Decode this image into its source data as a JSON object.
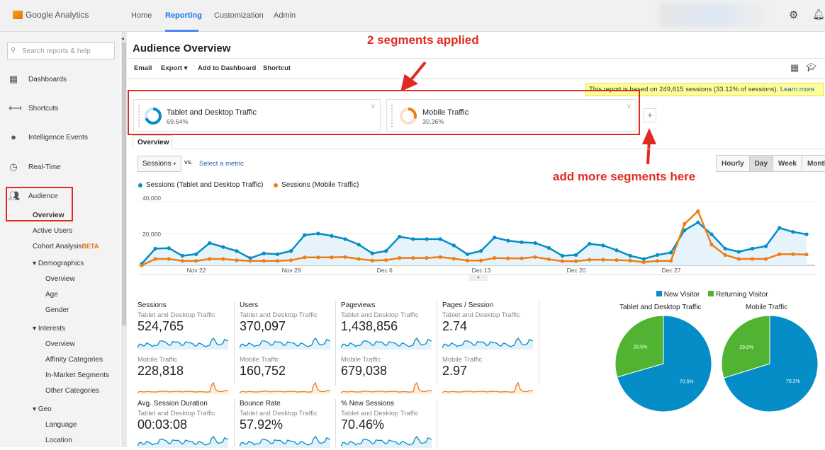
{
  "header": {
    "brand": "Google Analytics",
    "nav": [
      "Home",
      "Reporting",
      "Customization",
      "Admin"
    ],
    "active_nav": "Reporting",
    "icons": [
      "gear-icon",
      "bell-icon"
    ]
  },
  "sidebar": {
    "search_placeholder": "Search reports & help",
    "items": [
      {
        "label": "Dashboards",
        "icon": "grid-icon"
      },
      {
        "label": "Shortcuts",
        "icon": "shortcut-arrow-icon"
      },
      {
        "label": "Intelligence Events",
        "icon": "lightbulb-icon"
      },
      {
        "label": "Real-Time",
        "icon": "clock-icon"
      },
      {
        "label": "Audience",
        "icon": "people-icon"
      }
    ],
    "audience_sub": [
      "Overview",
      "Active Users",
      "Cohort Analysis"
    ],
    "beta": "BETA",
    "demographics": {
      "label": "Demographics",
      "items": [
        "Overview",
        "Age",
        "Gender"
      ]
    },
    "interests": {
      "label": "Interests",
      "items": [
        "Overview",
        "Affinity Categories",
        "In-Market Segments",
        "Other Categories"
      ]
    },
    "geo": {
      "label": "Geo",
      "items": [
        "Language",
        "Location"
      ]
    }
  },
  "page": {
    "title": "Audience Overview",
    "toolbar": [
      "Email",
      "Export",
      "Add to Dashboard",
      "Shortcut"
    ],
    "notice": "This report is based on 249,615 sessions (33.12% of sessions).",
    "notice_link": "Learn more",
    "segments": [
      {
        "name": "Tablet and Desktop Traffic",
        "pct": "69.64%",
        "color": "#058dc7"
      },
      {
        "name": "Mobile Traffic",
        "pct": "30.36%",
        "color": "#ed7e17"
      }
    ],
    "tab": "Overview",
    "metric": "Sessions",
    "vs": "vs.",
    "select_metric": "Select a metric",
    "granularity": [
      "Hourly",
      "Day",
      "Week",
      "Month"
    ],
    "granularity_active": "Day"
  },
  "annotations": {
    "top": "2 segments applied",
    "right": "add more segments here"
  },
  "chart_data": [
    {
      "type": "area",
      "series": [
        {
          "name": "Sessions (Tablet and Desktop Traffic)",
          "color": "#058dc7",
          "values": [
            1000,
            10500,
            10800,
            6000,
            7000,
            14000,
            11500,
            9000,
            4500,
            7500,
            7000,
            9000,
            19000,
            20000,
            18500,
            16500,
            13000,
            7500,
            9000,
            18000,
            16500,
            16500,
            16500,
            12500,
            7000,
            9000,
            17500,
            15500,
            14500,
            14000,
            11000,
            6000,
            6500,
            13500,
            12500,
            9500,
            6000,
            4000,
            6500,
            8000,
            22000,
            27000,
            19500,
            10500,
            8500,
            10500,
            12000,
            23500,
            21000,
            19500
          ]
        },
        {
          "name": "Sessions (Mobile Traffic)",
          "color": "#ed7e17",
          "values": [
            0,
            4000,
            4000,
            2800,
            2800,
            4000,
            4000,
            3200,
            2800,
            2800,
            2800,
            3200,
            5000,
            5000,
            5000,
            5200,
            4000,
            3000,
            3300,
            4600,
            4600,
            4600,
            5200,
            4200,
            3000,
            3000,
            4600,
            4400,
            4400,
            5200,
            3800,
            2600,
            2600,
            3500,
            3500,
            3300,
            3000,
            2000,
            2800,
            2800,
            26000,
            34000,
            13000,
            6500,
            4000,
            4000,
            4000,
            7000,
            7000,
            6800
          ]
        }
      ],
      "x_ticks": [
        {
          "label": "Nov 22",
          "index": 4
        },
        {
          "label": "Nov 29",
          "index": 11
        },
        {
          "label": "Dec 6",
          "index": 18
        },
        {
          "label": "Dec 13",
          "index": 25
        },
        {
          "label": "Dec 20",
          "index": 32
        },
        {
          "label": "Dec 27",
          "index": 39
        }
      ],
      "y_ticks": [
        "20,000",
        "40,000"
      ],
      "ylim": [
        0,
        40000
      ],
      "legend": "top-left",
      "grid": true
    },
    {
      "type": "pie",
      "legend": [
        "New Visitor",
        "Returning Visitor"
      ],
      "colors": [
        "#058dc7",
        "#50b432"
      ],
      "pies": [
        {
          "title": "Tablet and Desktop Traffic",
          "values": [
            70.5,
            29.5
          ],
          "labels": [
            "70.5%",
            "29.5%"
          ]
        },
        {
          "title": "Mobile Traffic",
          "values": [
            70.2,
            29.8
          ],
          "labels": [
            "70.2%",
            "29.8%"
          ]
        }
      ]
    }
  ],
  "metrics": [
    {
      "name": "Sessions",
      "seg1": "Tablet and Desktop Traffic",
      "v1": "524,765",
      "seg2": "Mobile Traffic",
      "v2": "228,818"
    },
    {
      "name": "Users",
      "seg1": "Tablet and Desktop Traffic",
      "v1": "370,097",
      "seg2": "Mobile Traffic",
      "v2": "160,752"
    },
    {
      "name": "Pageviews",
      "seg1": "Tablet and Desktop Traffic",
      "v1": "1,438,856",
      "seg2": "Mobile Traffic",
      "v2": "679,038"
    },
    {
      "name": "Pages / Session",
      "seg1": "Tablet and Desktop Traffic",
      "v1": "2.74",
      "seg2": "Mobile Traffic",
      "v2": "2.97"
    },
    {
      "name": "Avg. Session Duration",
      "seg1": "Tablet and Desktop Traffic",
      "v1": "00:03:08"
    },
    {
      "name": "Bounce Rate",
      "seg1": "Tablet and Desktop Traffic",
      "v1": "57.92%"
    },
    {
      "name": "% New Sessions",
      "seg1": "Tablet and Desktop Traffic",
      "v1": "70.46%"
    }
  ]
}
